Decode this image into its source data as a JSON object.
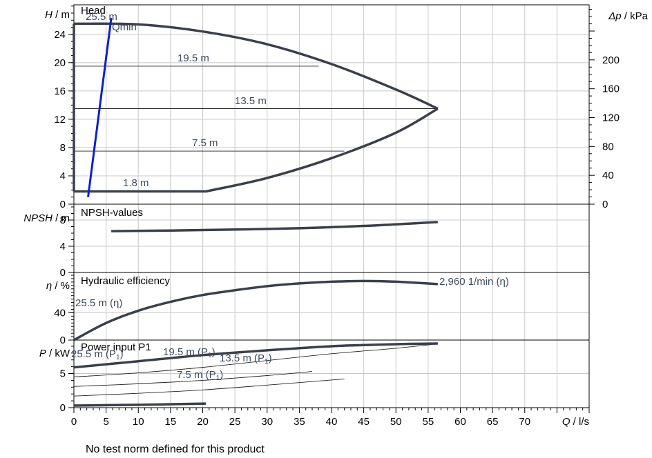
{
  "chart_data": {
    "type": "line",
    "x_axis": {
      "label_var": "Q",
      "label_unit": " / l/s",
      "range": [
        0,
        80
      ],
      "ticks": [
        0,
        5,
        10,
        15,
        20,
        25,
        30,
        35,
        40,
        45,
        50,
        55,
        60,
        65,
        70
      ]
    },
    "footer": "No test norm defined for this product",
    "panels": {
      "head": {
        "title": "Head",
        "y_var": "H",
        "y_unit": " / m",
        "y_range": [
          0,
          28
        ],
        "y_ticks": [
          0,
          4,
          8,
          12,
          16,
          20,
          24
        ],
        "right_axis": {
          "label_var": "Δp",
          "label_unit": " / kPa",
          "ticks": [
            0,
            40,
            80,
            120,
            160,
            200
          ]
        },
        "qmin_label": "Qmin",
        "curves": [
          {
            "label": "25.5 m",
            "points": [
              [
                0,
                25.5
              ],
              [
                10,
                25.4
              ],
              [
                20,
                24.4
              ],
              [
                30,
                22.6
              ],
              [
                40,
                19.8
              ],
              [
                50,
                16.2
              ],
              [
                56.5,
                13.5
              ]
            ]
          },
          {
            "label": "1.8 m",
            "points": [
              [
                0,
                1.8
              ],
              [
                20.5,
                1.8
              ],
              [
                30,
                3.7
              ],
              [
                40,
                6.5
              ],
              [
                50,
                10.1
              ],
              [
                56.5,
                13.5
              ]
            ]
          }
        ],
        "reference_lines": [
          {
            "label": "19.5 m",
            "y": 19.5,
            "x_end": 38
          },
          {
            "label": "13.5 m",
            "y": 13.5,
            "x_end": 56.5
          },
          {
            "label": "7.5 m",
            "y": 7.5,
            "x_end": 42
          }
        ],
        "qmin_line": [
          [
            2.2,
            1
          ],
          [
            5.8,
            26.3
          ]
        ]
      },
      "npsh": {
        "title": "NPSH-values",
        "y_var": "NPSH",
        "y_unit": " / m",
        "y_range": [
          0,
          10
        ],
        "y_ticks": [
          0,
          4,
          8
        ],
        "curve": [
          [
            5.8,
            6.3
          ],
          [
            15,
            6.4
          ],
          [
            25,
            6.55
          ],
          [
            35,
            6.75
          ],
          [
            45,
            7.1
          ],
          [
            52,
            7.45
          ],
          [
            56.5,
            7.7
          ]
        ]
      },
      "efficiency": {
        "title": "Hydraulic efficiency",
        "y_var": "η",
        "y_unit": " / %",
        "y_range": [
          0,
          95
        ],
        "y_ticks": [
          0,
          40
        ],
        "left_label": "25.5 m (η)",
        "right_label": "2,960 1/min (η)",
        "curve": [
          [
            0,
            0
          ],
          [
            5,
            25
          ],
          [
            10,
            43
          ],
          [
            15,
            56
          ],
          [
            20,
            66
          ],
          [
            25,
            73
          ],
          [
            30,
            79
          ],
          [
            35,
            83
          ],
          [
            40,
            85.5
          ],
          [
            45,
            86.5
          ],
          [
            50,
            85.5
          ],
          [
            56.5,
            82
          ]
        ]
      },
      "power": {
        "title": "Power input P1",
        "y_var": "P",
        "y_unit": "  / kW",
        "y_range": [
          0,
          9.5
        ],
        "y_ticks": [
          0,
          5
        ],
        "labels": [
          "25.5 m (P",
          "19.5 m (P",
          "13.5 m (P",
          "7.5 m (P"
        ],
        "label_suffix": ")",
        "main_curve": [
          [
            0,
            5.9
          ],
          [
            10,
            6.8
          ],
          [
            20,
            7.7
          ],
          [
            30,
            8.4
          ],
          [
            40,
            9.0
          ],
          [
            50,
            9.3
          ],
          [
            56.5,
            9.4
          ]
        ],
        "low_curve": [
          [
            0,
            0.3
          ],
          [
            10,
            0.42
          ],
          [
            20.5,
            0.6
          ]
        ],
        "thin_curves": [
          [
            [
              0,
              4.5
            ],
            [
              10,
              5.1
            ],
            [
              20,
              5.9
            ],
            [
              30,
              6.9
            ],
            [
              40,
              7.9
            ],
            [
              50,
              8.7
            ],
            [
              56.5,
              9.35
            ]
          ],
          [
            [
              0,
              3.1
            ],
            [
              10,
              3.5
            ],
            [
              20,
              4.0
            ],
            [
              30,
              4.7
            ],
            [
              37,
              5.3
            ]
          ],
          [
            [
              0,
              1.7
            ],
            [
              10,
              2.1
            ],
            [
              20,
              2.6
            ],
            [
              30,
              3.3
            ],
            [
              42,
              4.2
            ]
          ]
        ]
      }
    }
  }
}
